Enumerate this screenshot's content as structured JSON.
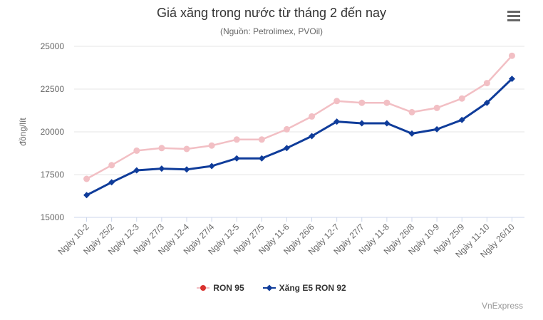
{
  "chart_data": {
    "type": "line",
    "title": "Giá xăng trong nước từ tháng 2 đến nay",
    "subtitle": "(Nguồn: Petrolimex, PVOil)",
    "xlabel": "",
    "ylabel": "đồng/lít",
    "ylim": [
      15000,
      25000
    ],
    "yticks": [
      "15000",
      "17500",
      "20000",
      "22500",
      "25000"
    ],
    "grid": true,
    "legend_position": "bottom",
    "categories": [
      "Ngày 10-2",
      "Ngày 25/2",
      "Ngày 12-3",
      "Ngày 27/3",
      "Ngày 12-4",
      "Ngày 27/4",
      "Ngày 12-5",
      "Ngày 27/5",
      "Ngày 11-6",
      "Ngày 26/6",
      "Ngày 12-7",
      "Ngày 27/7",
      "Ngày 11-8",
      "Ngày 26/8",
      "Ngày 10-9",
      "Ngày 25/9",
      "Ngày 11-10",
      "Ngày 26/10"
    ],
    "series": [
      {
        "name": "RON 95",
        "color": "#f2bfc4",
        "legend_color": "#d9312e",
        "marker": "circle",
        "values": [
          17250,
          18050,
          18900,
          19050,
          19000,
          19200,
          19550,
          19550,
          20150,
          20900,
          21800,
          21700,
          21700,
          21150,
          21400,
          21950,
          22850,
          24450
        ]
      },
      {
        "name": "Xăng E5 RON 92",
        "color": "#0f3c9a",
        "legend_color": "#0f3c9a",
        "marker": "diamond",
        "values": [
          16300,
          17050,
          17750,
          17850,
          17800,
          18000,
          18450,
          18450,
          19050,
          19750,
          20600,
          20500,
          20500,
          19900,
          20150,
          20700,
          21700,
          23100
        ]
      }
    ]
  },
  "legend": {
    "ron95": "RON 95",
    "e5": "Xăng E5 RON 92"
  },
  "credits": "VnExpress",
  "menu_icon": "hamburger-menu-icon"
}
